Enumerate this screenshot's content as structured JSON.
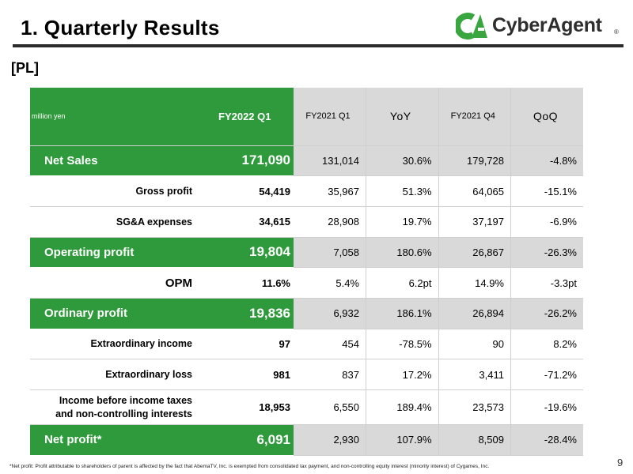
{
  "header": {
    "title": "1.  Quarterly Results",
    "brand": "CyberAgent",
    "brand_mark": "®",
    "logo_monogram": "CA"
  },
  "section_label": "[PL]",
  "table": {
    "columns": [
      "million yen",
      "FY2022 Q1",
      "FY2021 Q1",
      "YoY",
      "FY2021 Q4",
      "QoQ"
    ],
    "rows": [
      {
        "label": "Net Sales",
        "values": [
          "171,090",
          "131,014",
          "30.6%",
          "179,728",
          "-4.8%"
        ]
      },
      {
        "label": "Gross profit",
        "values": [
          "54,419",
          "35,967",
          "51.3%",
          "64,065",
          "-15.1%"
        ]
      },
      {
        "label": "SG&A expenses",
        "values": [
          "34,615",
          "28,908",
          "19.7%",
          "37,197",
          "-6.9%"
        ]
      },
      {
        "label": "Operating profit",
        "values": [
          "19,804",
          "7,058",
          "180.6%",
          "26,867",
          "-26.3%"
        ]
      },
      {
        "label": "OPM",
        "values": [
          "11.6%",
          "5.4%",
          "6.2pt",
          "14.9%",
          "-3.3pt"
        ]
      },
      {
        "label": "Ordinary profit",
        "values": [
          "19,836",
          "6,932",
          "186.1%",
          "26,894",
          "-26.2%"
        ]
      },
      {
        "label": "Extraordinary income",
        "values": [
          "97",
          "454",
          "-78.5%",
          "90",
          "8.2%"
        ]
      },
      {
        "label": "Extraordinary loss",
        "values": [
          "981",
          "837",
          "17.2%",
          "3,411",
          "-71.2%"
        ]
      },
      {
        "label_line1": "Income before income taxes",
        "label_line2": "and non-controlling interests",
        "values": [
          "18,953",
          "6,550",
          "189.4%",
          "23,573",
          "-19.6%"
        ]
      },
      {
        "label": "Net profit*",
        "values": [
          "6,091",
          "2,930",
          "107.9%",
          "8,509",
          "-28.4%"
        ]
      }
    ]
  },
  "footnote": "*Net profit: Profit attributable to shareholders of parent is affected by the fact that AbemaTV, Inc. is exempted from consolidated tax payment, and non-controlling equity interest (minority interest) of Cygames, Inc.",
  "page_number": "9",
  "colors": {
    "accent_green": "#2e9a3b",
    "shade_gray": "#d9d9d9"
  }
}
